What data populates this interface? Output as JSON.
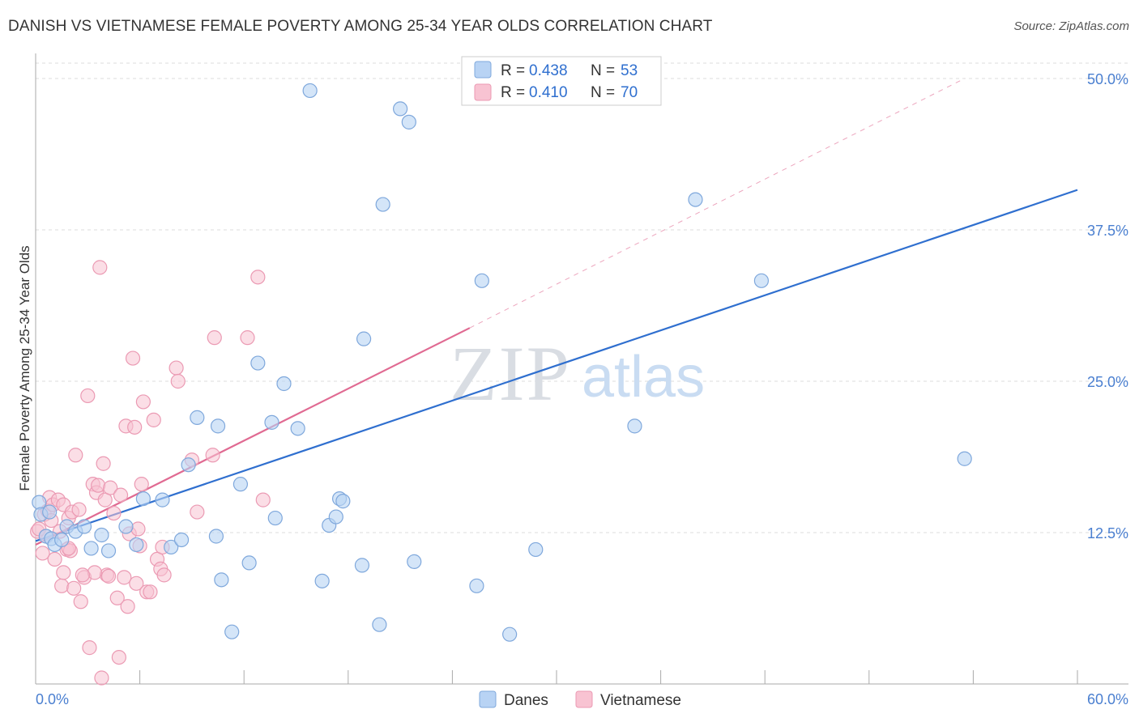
{
  "title": "DANISH VS VIETNAMESE FEMALE POVERTY AMONG 25-34 YEAR OLDS CORRELATION CHART",
  "source": "Source: ZipAtlas.com",
  "watermark": {
    "zip": "ZIP",
    "atlas": "atlas"
  },
  "colors": {
    "danes_fill": "#b8d3f4",
    "danes_stroke": "#7fa8dc",
    "danes_line": "#2f6fcf",
    "viet_fill": "#f8c3d2",
    "viet_stroke": "#eb9ab3",
    "viet_line": "#e06a92",
    "axis_text": "#4a7fd0",
    "grid": "#dddddd"
  },
  "legend": {
    "rows": [
      {
        "r_label": "R = ",
        "r_value": "0.438",
        "n_label": "N = ",
        "n_value": "53"
      },
      {
        "r_label": "R = ",
        "r_value": "0.410",
        "n_label": "N = ",
        "n_value": "70"
      }
    ],
    "bottom": [
      "Danes",
      "Vietnamese"
    ]
  },
  "chart_data": {
    "type": "scatter",
    "title": "DANISH VS VIETNAMESE FEMALE POVERTY AMONG 25-34 YEAR OLDS CORRELATION CHART",
    "xlabel": "",
    "ylabel": "Female Poverty Among 25-34 Year Olds",
    "xlim": [
      0,
      60
    ],
    "ylim": [
      0,
      50
    ],
    "x_tick_labels": [
      "0.0%",
      "60.0%"
    ],
    "y_ticks": [
      12.5,
      25.0,
      37.5,
      50.0
    ],
    "y_tick_labels": [
      "12.5%",
      "25.0%",
      "37.5%",
      "50.0%"
    ],
    "grid": true,
    "legend_position": "top-center",
    "series": [
      {
        "name": "Danes",
        "r": 0.438,
        "n": 53,
        "trend": {
          "x": [
            0,
            60
          ],
          "y": [
            11.8,
            40.8
          ]
        },
        "points": [
          [
            0.2,
            15.0
          ],
          [
            0.6,
            12.2
          ],
          [
            0.9,
            12.0
          ],
          [
            1.1,
            11.5
          ],
          [
            1.8,
            13.0
          ],
          [
            2.3,
            12.6
          ],
          [
            2.8,
            13.0
          ],
          [
            3.2,
            11.2
          ],
          [
            3.8,
            12.3
          ],
          [
            4.2,
            11.0
          ],
          [
            5.2,
            13.0
          ],
          [
            5.8,
            11.5
          ],
          [
            6.2,
            15.3
          ],
          [
            7.3,
            15.2
          ],
          [
            7.8,
            11.3
          ],
          [
            8.4,
            11.9
          ],
          [
            8.8,
            18.1
          ],
          [
            9.3,
            22.0
          ],
          [
            10.4,
            12.2
          ],
          [
            10.5,
            21.3
          ],
          [
            10.7,
            8.6
          ],
          [
            11.3,
            4.3
          ],
          [
            11.8,
            16.5
          ],
          [
            12.3,
            10.0
          ],
          [
            12.8,
            26.5
          ],
          [
            13.6,
            21.6
          ],
          [
            13.8,
            13.7
          ],
          [
            14.3,
            24.8
          ],
          [
            15.1,
            21.1
          ],
          [
            15.8,
            49.0
          ],
          [
            16.5,
            8.5
          ],
          [
            16.9,
            13.1
          ],
          [
            17.3,
            13.8
          ],
          [
            17.5,
            15.3
          ],
          [
            17.7,
            15.1
          ],
          [
            18.8,
            9.8
          ],
          [
            18.9,
            28.5
          ],
          [
            19.8,
            4.9
          ],
          [
            20.0,
            39.6
          ],
          [
            21.0,
            47.5
          ],
          [
            21.5,
            46.4
          ],
          [
            21.8,
            10.1
          ],
          [
            25.4,
            8.1
          ],
          [
            25.7,
            33.3
          ],
          [
            27.3,
            4.1
          ],
          [
            28.8,
            11.1
          ],
          [
            34.5,
            21.3
          ],
          [
            38.0,
            40.0
          ],
          [
            41.8,
            33.3
          ],
          [
            53.5,
            18.6
          ],
          [
            0.3,
            14.0
          ],
          [
            0.8,
            14.2
          ],
          [
            1.5,
            11.9
          ]
        ]
      },
      {
        "name": "Vietnamese",
        "r": 0.41,
        "n": 70,
        "trend": {
          "x": [
            0,
            25
          ],
          "y": [
            11.5,
            29.4
          ]
        },
        "trend_extension": {
          "x": [
            25,
            53.5
          ],
          "y": [
            29.4,
            50.0
          ]
        },
        "points": [
          [
            0.1,
            12.6
          ],
          [
            0.2,
            12.8
          ],
          [
            0.4,
            10.8
          ],
          [
            0.5,
            14.0
          ],
          [
            0.6,
            12.2
          ],
          [
            0.7,
            14.3
          ],
          [
            0.8,
            15.4
          ],
          [
            0.9,
            13.5
          ],
          [
            1.0,
            14.8
          ],
          [
            1.1,
            10.3
          ],
          [
            1.3,
            15.2
          ],
          [
            1.4,
            12.6
          ],
          [
            1.5,
            8.1
          ],
          [
            1.6,
            9.2
          ],
          [
            1.6,
            14.8
          ],
          [
            1.8,
            11.1
          ],
          [
            1.9,
            13.7
          ],
          [
            2.0,
            11.0
          ],
          [
            2.1,
            14.2
          ],
          [
            2.2,
            7.9
          ],
          [
            2.3,
            18.9
          ],
          [
            2.5,
            14.4
          ],
          [
            2.6,
            6.8
          ],
          [
            2.8,
            8.8
          ],
          [
            3.0,
            23.8
          ],
          [
            3.1,
            3.0
          ],
          [
            3.3,
            16.5
          ],
          [
            3.5,
            15.8
          ],
          [
            3.6,
            16.4
          ],
          [
            3.7,
            34.4
          ],
          [
            3.8,
            0.5
          ],
          [
            3.9,
            18.2
          ],
          [
            4.0,
            15.2
          ],
          [
            4.1,
            9.0
          ],
          [
            4.2,
            8.9
          ],
          [
            4.3,
            16.2
          ],
          [
            4.5,
            14.1
          ],
          [
            4.7,
            7.1
          ],
          [
            4.8,
            2.2
          ],
          [
            4.9,
            15.6
          ],
          [
            5.1,
            8.8
          ],
          [
            5.2,
            21.3
          ],
          [
            5.3,
            6.4
          ],
          [
            5.4,
            12.4
          ],
          [
            5.6,
            26.9
          ],
          [
            5.7,
            21.2
          ],
          [
            5.8,
            8.3
          ],
          [
            5.9,
            12.8
          ],
          [
            6.0,
            11.4
          ],
          [
            6.1,
            16.5
          ],
          [
            6.2,
            23.3
          ],
          [
            6.4,
            7.6
          ],
          [
            6.6,
            7.6
          ],
          [
            6.8,
            21.8
          ],
          [
            7.0,
            10.3
          ],
          [
            7.2,
            9.5
          ],
          [
            7.3,
            11.3
          ],
          [
            7.4,
            9.0
          ],
          [
            8.1,
            26.1
          ],
          [
            8.2,
            25.0
          ],
          [
            9.0,
            18.5
          ],
          [
            9.3,
            14.2
          ],
          [
            10.2,
            18.9
          ],
          [
            10.3,
            28.6
          ],
          [
            12.2,
            28.6
          ],
          [
            12.8,
            33.6
          ],
          [
            13.1,
            15.2
          ],
          [
            3.4,
            9.2
          ],
          [
            1.9,
            11.2
          ],
          [
            2.7,
            9.0
          ]
        ]
      }
    ]
  }
}
